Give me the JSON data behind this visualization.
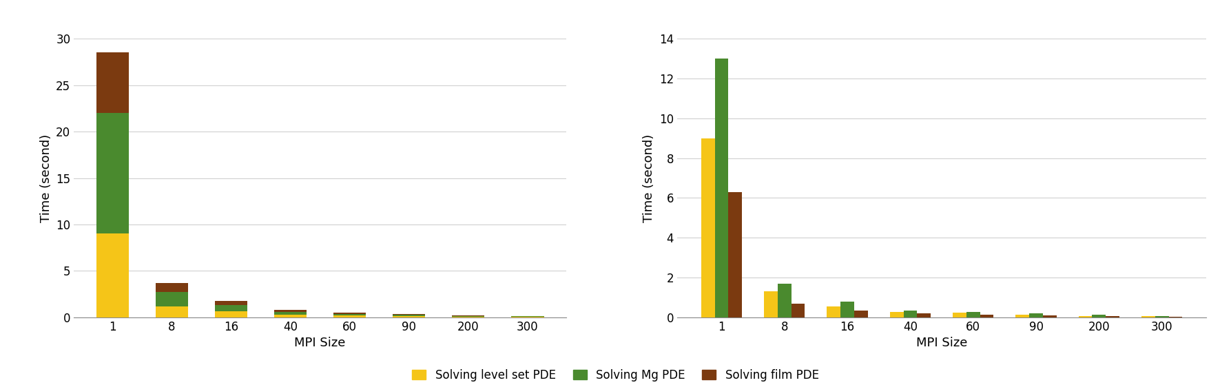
{
  "mpi_sizes": [
    1,
    8,
    16,
    40,
    60,
    90,
    200,
    300
  ],
  "left_yellow": [
    9.0,
    1.2,
    0.65,
    0.28,
    0.18,
    0.13,
    0.08,
    0.05
  ],
  "left_green": [
    13.0,
    1.5,
    0.7,
    0.32,
    0.2,
    0.14,
    0.09,
    0.05
  ],
  "left_brown": [
    6.5,
    1.0,
    0.45,
    0.22,
    0.15,
    0.1,
    0.06,
    0.04
  ],
  "right_yellow": [
    9.0,
    1.3,
    0.55,
    0.28,
    0.22,
    0.15,
    0.08,
    0.05
  ],
  "right_green": [
    13.0,
    1.7,
    0.8,
    0.35,
    0.27,
    0.2,
    0.12,
    0.08
  ],
  "right_brown": [
    6.3,
    0.7,
    0.35,
    0.2,
    0.15,
    0.1,
    0.07,
    0.04
  ],
  "color_yellow": "#F5C518",
  "color_green": "#4A8A2E",
  "color_brown": "#7B3A10",
  "ylabel": "Time (second)",
  "xlabel": "MPI Size",
  "left_ylim": [
    0,
    30
  ],
  "right_ylim": [
    0,
    14
  ],
  "left_yticks": [
    0,
    5,
    10,
    15,
    20,
    25,
    30
  ],
  "right_yticks": [
    0,
    2,
    4,
    6,
    8,
    10,
    12,
    14
  ],
  "legend_labels": [
    "Solving level set PDE",
    "Solving Mg PDE",
    "Solving film PDE"
  ]
}
